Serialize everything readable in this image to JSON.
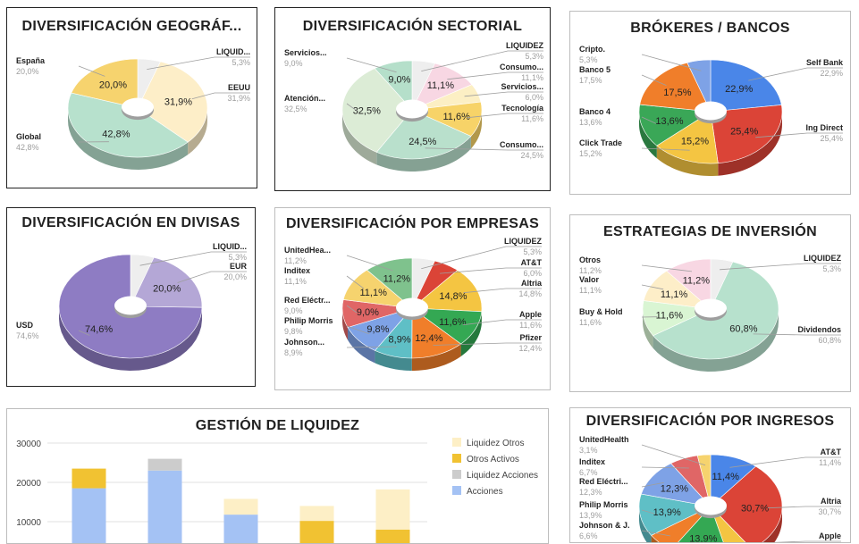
{
  "chart_data": [
    {
      "id": "geo",
      "type": "pie",
      "title": "DIVERSIFICACIÓN GEOGRÁF...",
      "slices": [
        {
          "name": "LIQUID...",
          "value": 5.3,
          "pct_label": "5,3%",
          "color": "#eeeeee"
        },
        {
          "name": "EEUU",
          "value": 31.9,
          "pct_label": "31,9%",
          "color": "#fdeec8"
        },
        {
          "name": "Global",
          "value": 42.8,
          "pct_label": "42,8%",
          "color": "#b7e1cd"
        },
        {
          "name": "España",
          "value": 20.0,
          "pct_label": "20,0%",
          "color": "#f6d36e"
        }
      ]
    },
    {
      "id": "sector",
      "type": "pie",
      "title": "DIVERSIFICACIÓN SECTORIAL",
      "slices": [
        {
          "name": "LIQUIDEZ",
          "value": 5.3,
          "pct_label": "5,3%",
          "color": "#eeeeee"
        },
        {
          "name": "Consumo...",
          "value": 11.1,
          "pct_label": "11,1%",
          "color": "#f8d7e3"
        },
        {
          "name": "Servicios...",
          "value": 6.0,
          "pct_label": "6,0%",
          "color": "#fcefc4"
        },
        {
          "name": "Tecnología",
          "value": 11.6,
          "pct_label": "11,6%",
          "color": "#f7d368"
        },
        {
          "name": "Consumo...",
          "value": 24.5,
          "pct_label": "24,5%",
          "color": "#b9e0cc"
        },
        {
          "name": "Atención...",
          "value": 32.5,
          "pct_label": "32,5%",
          "color": "#dcecd6"
        },
        {
          "name": "Servicios...",
          "value": 9.0,
          "pct_label": "9,0%",
          "color": "#b5dfca"
        }
      ]
    },
    {
      "id": "brokers",
      "type": "pie",
      "title": "BRÓKERES  / BANCOS",
      "slices": [
        {
          "name": "Self Bank",
          "value": 22.9,
          "pct_label": "22,9%",
          "color": "#4a86e8"
        },
        {
          "name": "Ing Direct",
          "value": 25.4,
          "pct_label": "25,4%",
          "color": "#db4437"
        },
        {
          "name": "Click Trade",
          "value": 15.2,
          "pct_label": "15,2%",
          "color": "#f4c542"
        },
        {
          "name": "Banco 4",
          "value": 13.6,
          "pct_label": "13,6%",
          "color": "#3aa757"
        },
        {
          "name": "Banco 5",
          "value": 17.5,
          "pct_label": "17,5%",
          "color": "#f07e2a"
        },
        {
          "name": "Cripto.",
          "value": 5.3,
          "pct_label": "5,3%",
          "color": "#7ea2e6"
        }
      ]
    },
    {
      "id": "divisas",
      "type": "pie",
      "title": "DIVERSIFICACIÓN EN DIVISAS",
      "slices": [
        {
          "name": "LIQUID...",
          "value": 5.3,
          "pct_label": "5,3%",
          "color": "#eeeeee"
        },
        {
          "name": "EUR",
          "value": 20.0,
          "pct_label": "20,0%",
          "color": "#b4a7d6"
        },
        {
          "name": "USD",
          "value": 74.6,
          "pct_label": "74,6%",
          "color": "#8e7cc3"
        }
      ]
    },
    {
      "id": "empresas",
      "type": "pie",
      "title": "DIVERSIFICACIÓN POR EMPRESAS",
      "slices": [
        {
          "name": "LIQUIDEZ",
          "value": 5.3,
          "pct_label": "5,3%",
          "color": "#eeeeee"
        },
        {
          "name": "AT&T",
          "value": 6.0,
          "pct_label": "6,0%",
          "color": "#db4437"
        },
        {
          "name": "Altria",
          "value": 14.8,
          "pct_label": "14,8%",
          "color": "#f4c542"
        },
        {
          "name": "Apple",
          "value": 11.6,
          "pct_label": "11,6%",
          "color": "#34a853"
        },
        {
          "name": "Pfizer",
          "value": 12.4,
          "pct_label": "12,4%",
          "color": "#f07e2a"
        },
        {
          "name": "Johnson...",
          "value": 8.9,
          "pct_label": "8,9%",
          "color": "#5fbfc6"
        },
        {
          "name": "Philip Morris",
          "value": 9.8,
          "pct_label": "9,8%",
          "color": "#7ea2e6"
        },
        {
          "name": "Red Eléctr...",
          "value": 9.0,
          "pct_label": "9,0%",
          "color": "#e06666"
        },
        {
          "name": "Inditex",
          "value": 11.1,
          "pct_label": "11,1%",
          "color": "#f6d36e"
        },
        {
          "name": "UnitedHea...",
          "value": 11.2,
          "pct_label": "11,2%",
          "color": "#7fc28d"
        }
      ]
    },
    {
      "id": "estrategias",
      "type": "pie",
      "title": "ESTRATEGIAS DE INVERSIÓN",
      "slices": [
        {
          "name": "LIQUIDEZ",
          "value": 5.3,
          "pct_label": "5,3%",
          "color": "#eeeeee"
        },
        {
          "name": "Dividendos",
          "value": 60.8,
          "pct_label": "60,8%",
          "color": "#b7e1cd"
        },
        {
          "name": "Buy & Hold",
          "value": 11.6,
          "pct_label": "11,6%",
          "color": "#d9f5d3"
        },
        {
          "name": "Valor",
          "value": 11.1,
          "pct_label": "11,1%",
          "color": "#fdeec8"
        },
        {
          "name": "Otros",
          "value": 11.2,
          "pct_label": "11,2%",
          "color": "#f8d7e3"
        }
      ]
    },
    {
      "id": "liquidez",
      "type": "bar",
      "title": "GESTIÓN DE LIQUIDEZ",
      "stacked": true,
      "ylim": [
        0,
        30000
      ],
      "yticks": [
        "30000",
        "20000",
        "10000"
      ],
      "legend": "right",
      "categories": [
        "",
        "",
        "",
        "",
        ""
      ],
      "series": [
        {
          "name": "Acciones",
          "color": "#a4c2f4",
          "values": [
            18500,
            23000,
            11800,
            0,
            0
          ]
        },
        {
          "name": "Liquidez Acciones",
          "color": "#cccccc",
          "values": [
            0,
            3000,
            0,
            0,
            0
          ]
        },
        {
          "name": "Otros Activos",
          "color": "#f1c232",
          "values": [
            5000,
            0,
            0,
            10200,
            8000
          ]
        },
        {
          "name": "Liquidez Otros",
          "color": "#fdefc6",
          "values": [
            0,
            0,
            4000,
            3800,
            10200
          ]
        }
      ],
      "legend_order": [
        "Liquidez Otros",
        "Otros Activos",
        "Liquidez Acciones",
        "Acciones"
      ]
    },
    {
      "id": "ingresos",
      "type": "pie",
      "title": "DIVERSIFICACIÓN POR INGRESOS",
      "slices": [
        {
          "name": "AT&T",
          "value": 11.4,
          "pct_label": "11,4%",
          "color": "#4a86e8"
        },
        {
          "name": "Altria",
          "value": 30.7,
          "pct_label": "30,7%",
          "color": "#db4437"
        },
        {
          "name": "Apple",
          "value": 6.0,
          "pct_label": "",
          "color": "#f4c542"
        },
        {
          "name": "",
          "value": 13.9,
          "pct_label": "13,9%",
          "color": "#34a853"
        },
        {
          "name": "Johnson & J.",
          "value": 6.6,
          "pct_label": "6,6%",
          "color": "#f07e2a"
        },
        {
          "name": "Philip Morris",
          "value": 13.9,
          "pct_label": "13,9%",
          "color": "#5fbfc6"
        },
        {
          "name": "Red Eléctri...",
          "value": 12.3,
          "pct_label": "12,3%",
          "color": "#7ea2e6"
        },
        {
          "name": "Inditex",
          "value": 6.7,
          "pct_label": "6,7%",
          "color": "#e06666"
        },
        {
          "name": "UnitedHealth",
          "value": 3.1,
          "pct_label": "3,1%",
          "color": "#f6d36e"
        }
      ]
    }
  ]
}
